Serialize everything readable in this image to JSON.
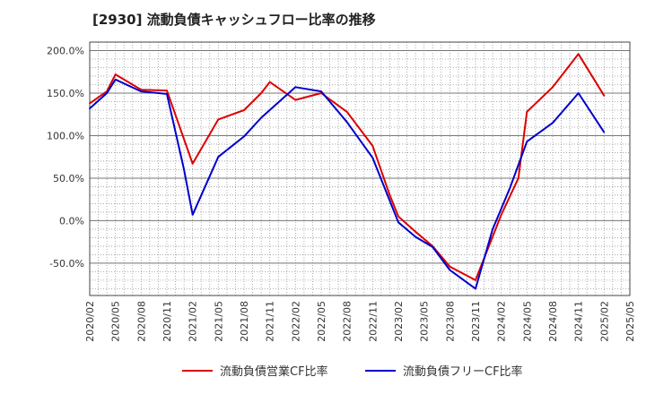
{
  "title": "[2930]  流動負債キャッシュフロー比率の推移",
  "chart_data": {
    "type": "line",
    "title": "[2930]  流動負債キャッシュフロー比率の推移",
    "xlabel": "",
    "ylabel": "",
    "grid": true,
    "legend_position": "bottom",
    "ylim": [
      -88,
      210
    ],
    "y_ticks": [
      "200.0%",
      "150.0%",
      "100.0%",
      "50.0%",
      "0.0%",
      "-50.0%"
    ],
    "y_tick_values": [
      200,
      150,
      100,
      50,
      0,
      -50
    ],
    "x_ticks": [
      "2020/02",
      "2020/05",
      "2020/08",
      "2020/11",
      "2021/02",
      "2021/05",
      "2021/08",
      "2021/11",
      "2022/02",
      "2022/05",
      "2022/08",
      "2022/11",
      "2023/02",
      "2023/05",
      "2023/08",
      "2023/11",
      "2024/02",
      "2024/05",
      "2024/08",
      "2024/11",
      "2025/02",
      "2025/05"
    ],
    "x": [
      "2020/02",
      "2020/05",
      "2020/08",
      "2020/11",
      "2021/02",
      "2021/05",
      "2021/08",
      "2021/11",
      "2022/02",
      "2022/05",
      "2022/08",
      "2022/11",
      "2023/02",
      "2023/05",
      "2023/08",
      "2023/11",
      "2024/02",
      "2024/05",
      "2024/08",
      "2024/11",
      "2025/02"
    ],
    "series": [
      {
        "name": "流動負債営業CF比率",
        "color": "#dd0000",
        "x": [
          "2020/02",
          "2020/04",
          "2020/05",
          "2020/08",
          "2020/11",
          "2021/02",
          "2021/05",
          "2021/08",
          "2021/10",
          "2021/11",
          "2022/02",
          "2022/05",
          "2022/08",
          "2022/11",
          "2023/01",
          "2023/02",
          "2023/04",
          "2023/06",
          "2023/08",
          "2023/11",
          "2024/02",
          "2024/04",
          "2024/05",
          "2024/08",
          "2024/11",
          "2025/02"
        ],
        "values": [
          138,
          152,
          172,
          154,
          153,
          67,
          119,
          130,
          150,
          163,
          142,
          150,
          128,
          88,
          30,
          5,
          -13,
          -30,
          -54,
          -70,
          7,
          50,
          128,
          157,
          196,
          147
        ]
      },
      {
        "name": "流動負債フリーCF比率",
        "color": "#0000cc",
        "x": [
          "2020/02",
          "2020/04",
          "2020/05",
          "2020/08",
          "2020/11",
          "2021/01",
          "2021/02",
          "2021/05",
          "2021/08",
          "2021/10",
          "2022/02",
          "2022/05",
          "2022/08",
          "2022/11",
          "2023/02",
          "2023/04",
          "2023/06",
          "2023/08",
          "2023/11",
          "2024/01",
          "2024/03",
          "2024/05",
          "2024/08",
          "2024/11",
          "2025/02"
        ],
        "values": [
          132,
          150,
          166,
          152,
          149,
          60,
          7,
          75,
          99,
          121,
          157,
          152,
          116,
          74,
          -2,
          -19,
          -31,
          -58,
          -80,
          -10,
          38,
          93,
          115,
          150,
          104
        ]
      }
    ]
  },
  "legend": {
    "items": [
      {
        "label": "流動負債営業CF比率",
        "color": "#dd0000"
      },
      {
        "label": "流動負債フリーCF比率",
        "color": "#0000cc"
      }
    ]
  }
}
